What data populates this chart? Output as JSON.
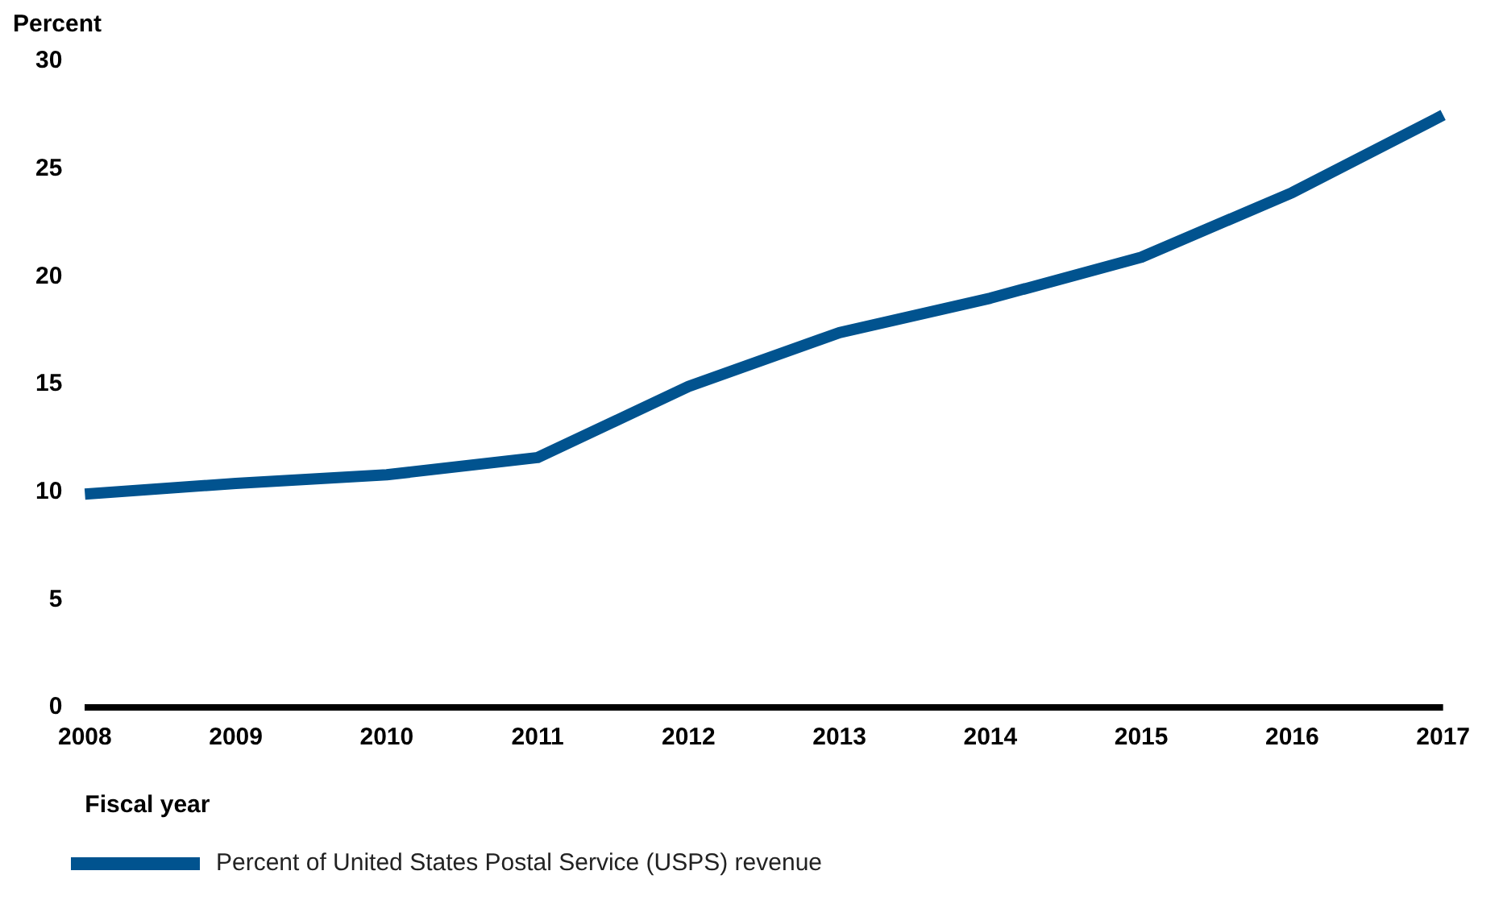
{
  "chart_data": {
    "type": "line",
    "ylabel": "Percent",
    "xlabel": "Fiscal year",
    "categories": [
      "2008",
      "2009",
      "2010",
      "2011",
      "2012",
      "2013",
      "2014",
      "2015",
      "2016",
      "2017"
    ],
    "series": [
      {
        "name": "Percent of United States Postal Service (USPS) revenue",
        "color": "#01538f",
        "values": [
          9.9,
          10.4,
          10.8,
          11.6,
          14.9,
          17.4,
          19.0,
          20.9,
          23.9,
          27.5
        ]
      }
    ],
    "ylim": [
      0,
      30
    ],
    "yticks": [
      0,
      5,
      10,
      15,
      20,
      25,
      30
    ],
    "grid": false,
    "legend": "bottom left",
    "marker": "none",
    "line_style": "solid"
  }
}
